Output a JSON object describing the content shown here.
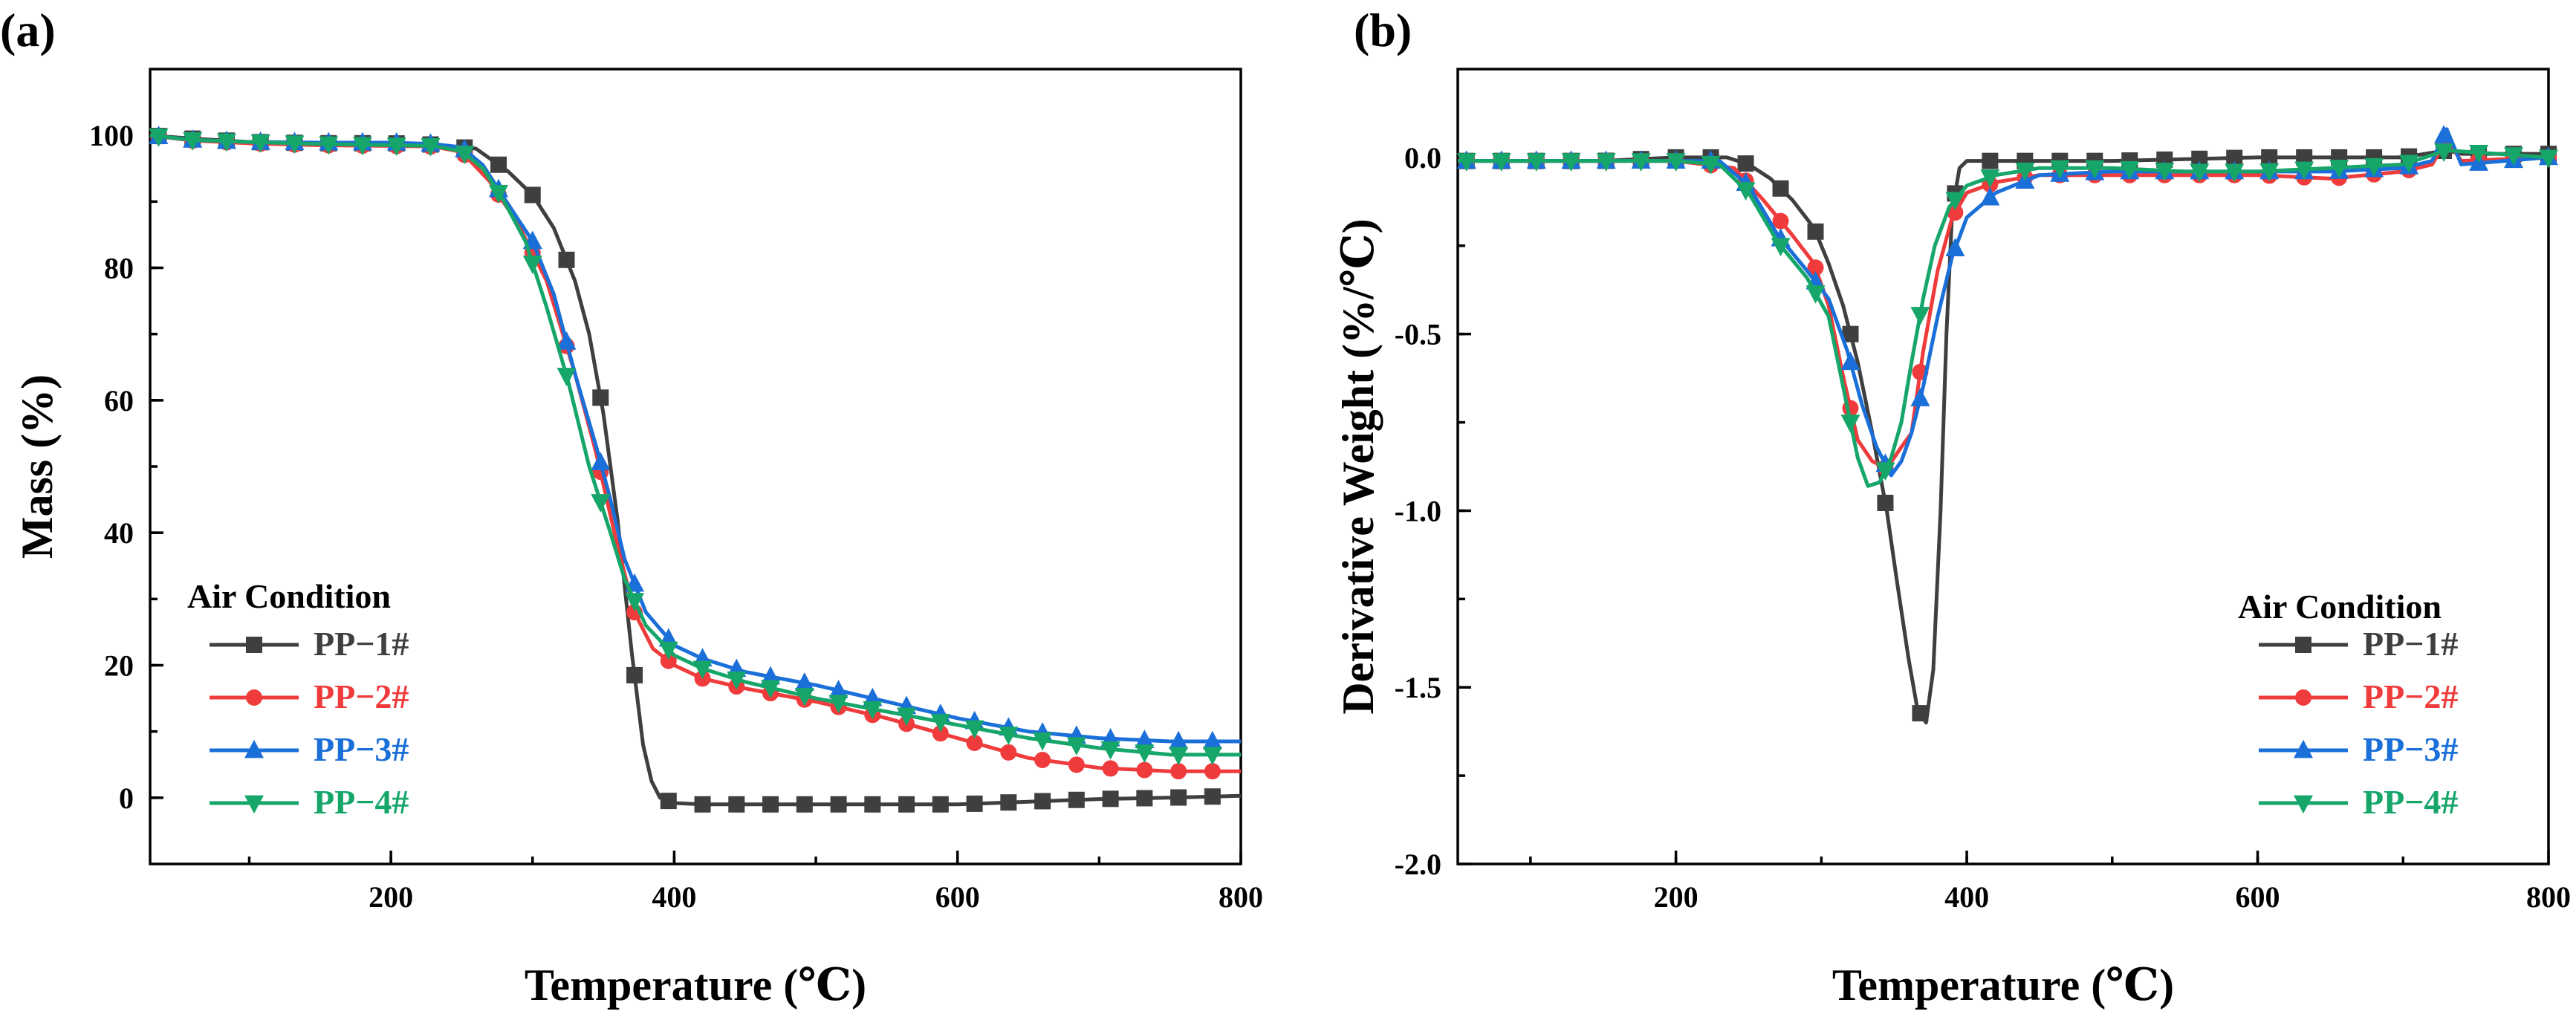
{
  "chart_data": [
    {
      "type": "line",
      "panel": "(a)",
      "xlabel": "Temperature (℃)",
      "ylabel": "Mass (%)",
      "xlim": [
        30,
        800
      ],
      "ylim": [
        -10,
        110
      ],
      "xticks": [
        200,
        400,
        600,
        800
      ],
      "yticks": [
        0,
        20,
        40,
        60,
        80,
        100
      ],
      "xtick_labels": [
        "200",
        "400",
        "600",
        "800"
      ],
      "ytick_labels": [
        "0",
        "20",
        "40",
        "60",
        "80",
        "100"
      ],
      "legend": {
        "title": "Air Condition",
        "position": "bottom-left"
      },
      "series": [
        {
          "name": "PP−1#",
          "color": "#3f3f3f",
          "marker": "square",
          "x": [
            30,
            60,
            100,
            150,
            200,
            230,
            260,
            283,
            300,
            315,
            330,
            340,
            350,
            360,
            370,
            378,
            384,
            390,
            400,
            420,
            450,
            500,
            550,
            600,
            650,
            700,
            750,
            800
          ],
          "y": [
            100,
            99.5,
            99,
            98.8,
            98.8,
            98.6,
            98,
            94.5,
            91,
            86,
            78,
            70,
            58,
            42,
            22,
            8,
            2.5,
            0,
            -0.8,
            -1,
            -1,
            -1,
            -1,
            -1,
            -0.6,
            -0.2,
            0,
            0.3
          ]
        },
        {
          "name": "PP−2#",
          "color": "#ef3b3b",
          "marker": "circle",
          "x": [
            30,
            60,
            100,
            150,
            200,
            230,
            250,
            270,
            290,
            310,
            330,
            345,
            360,
            372,
            385,
            400,
            420,
            450,
            500,
            550,
            600,
            650,
            700,
            750,
            800
          ],
          "y": [
            100,
            99.2,
            98.8,
            98.5,
            98.4,
            98.3,
            97.5,
            93,
            86.5,
            78,
            64,
            52,
            38,
            28,
            22.5,
            20,
            18,
            16.5,
            14.5,
            12,
            9,
            6,
            4.5,
            4,
            4
          ]
        },
        {
          "name": "PP−3#",
          "color": "#1a6fd8",
          "marker": "triangle-up",
          "x": [
            30,
            60,
            100,
            150,
            200,
            230,
            250,
            265,
            280,
            300,
            315,
            330,
            345,
            355,
            365,
            380,
            400,
            420,
            450,
            500,
            550,
            600,
            650,
            700,
            750,
            800
          ],
          "y": [
            100,
            99.3,
            99,
            98.9,
            98.9,
            98.7,
            98.2,
            95.5,
            90.5,
            84,
            76,
            64,
            53,
            45,
            36,
            28,
            23,
            21,
            19,
            17,
            14.5,
            12,
            10,
            9,
            8.5,
            8.5
          ]
        },
        {
          "name": "PP−4#",
          "color": "#16a66a",
          "marker": "triangle-down",
          "x": [
            30,
            60,
            100,
            150,
            200,
            230,
            250,
            265,
            280,
            295,
            310,
            325,
            340,
            355,
            365,
            380,
            400,
            420,
            450,
            500,
            550,
            600,
            650,
            700,
            750,
            800
          ],
          "y": [
            100,
            99.3,
            99,
            98.7,
            98.5,
            98.4,
            97.6,
            95,
            90,
            84,
            74,
            63,
            50,
            40,
            33,
            26,
            21.5,
            19.5,
            17.5,
            15,
            13,
            11,
            9,
            7.5,
            6.5,
            6.5
          ]
        }
      ]
    },
    {
      "type": "line",
      "panel": "(b)",
      "xlabel": "Temperature (℃)",
      "ylabel": "Derivative Weight (%/℃)",
      "xlim": [
        50,
        800
      ],
      "ylim": [
        -2.0,
        0.25
      ],
      "xticks": [
        200,
        400,
        600,
        800
      ],
      "yticks": [
        0.0,
        -0.5,
        -1.0,
        -1.5,
        -2.0
      ],
      "xtick_labels": [
        "200",
        "400",
        "600",
        "800"
      ],
      "ytick_labels": [
        "0.0",
        "-0.5",
        "-1.0",
        "-1.5",
        "-2.0"
      ],
      "legend": {
        "title": "Air Condition",
        "position": "bottom-right"
      },
      "series": [
        {
          "name": "PP−1#",
          "color": "#3f3f3f",
          "marker": "square",
          "x": [
            50,
            100,
            150,
            200,
            235,
            250,
            265,
            280,
            295,
            305,
            315,
            325,
            335,
            345,
            352,
            360,
            366,
            372,
            377,
            382,
            386,
            390,
            395,
            400,
            420,
            500,
            600,
            700,
            730,
            740,
            800
          ],
          "y": [
            -0.01,
            -0.01,
            -0.01,
            0,
            0,
            -0.02,
            -0.06,
            -0.12,
            -0.2,
            -0.3,
            -0.42,
            -0.58,
            -0.78,
            -1.0,
            -1.2,
            -1.42,
            -1.56,
            -1.6,
            -1.45,
            -1.0,
            -0.5,
            -0.15,
            -0.03,
            -0.01,
            -0.01,
            -0.01,
            0,
            0,
            0.02,
            0.01,
            0.01
          ]
        },
        {
          "name": "PP−2#",
          "color": "#ef3b3b",
          "marker": "circle",
          "x": [
            50,
            100,
            150,
            200,
            240,
            260,
            280,
            295,
            305,
            315,
            325,
            335,
            345,
            355,
            362,
            370,
            380,
            390,
            400,
            420,
            450,
            500,
            550,
            600,
            650,
            700,
            720,
            730,
            740,
            800
          ],
          "y": [
            -0.01,
            -0.01,
            -0.01,
            -0.01,
            -0.03,
            -0.12,
            -0.22,
            -0.3,
            -0.42,
            -0.62,
            -0.8,
            -0.86,
            -0.88,
            -0.82,
            -0.78,
            -0.55,
            -0.32,
            -0.17,
            -0.1,
            -0.07,
            -0.05,
            -0.05,
            -0.05,
            -0.05,
            -0.06,
            -0.04,
            -0.02,
            0.05,
            -0.01,
            0
          ]
        },
        {
          "name": "PP−3#",
          "color": "#1a6fd8",
          "marker": "triangle-up",
          "x": [
            50,
            100,
            150,
            200,
            230,
            250,
            270,
            290,
            305,
            318,
            328,
            338,
            348,
            355,
            362,
            370,
            380,
            390,
            400,
            420,
            450,
            500,
            550,
            600,
            650,
            700,
            720,
            730,
            740,
            800
          ],
          "y": [
            -0.01,
            -0.01,
            -0.01,
            -0.01,
            -0.01,
            -0.08,
            -0.22,
            -0.32,
            -0.4,
            -0.55,
            -0.7,
            -0.82,
            -0.9,
            -0.86,
            -0.78,
            -0.65,
            -0.45,
            -0.28,
            -0.17,
            -0.1,
            -0.05,
            -0.04,
            -0.04,
            -0.04,
            -0.04,
            -0.03,
            -0.01,
            0.08,
            -0.02,
            0
          ]
        },
        {
          "name": "PP−4#",
          "color": "#16a66a",
          "marker": "triangle-down",
          "x": [
            50,
            100,
            150,
            200,
            230,
            250,
            270,
            290,
            305,
            315,
            325,
            332,
            340,
            348,
            355,
            362,
            370,
            378,
            388,
            400,
            420,
            450,
            500,
            550,
            600,
            650,
            700,
            730,
            800
          ],
          "y": [
            -0.01,
            -0.01,
            -0.01,
            -0.01,
            -0.02,
            -0.1,
            -0.24,
            -0.34,
            -0.45,
            -0.65,
            -0.85,
            -0.93,
            -0.92,
            -0.85,
            -0.75,
            -0.58,
            -0.4,
            -0.25,
            -0.14,
            -0.08,
            -0.05,
            -0.03,
            -0.03,
            -0.04,
            -0.04,
            -0.03,
            -0.02,
            0.02,
            0
          ]
        }
      ]
    }
  ]
}
